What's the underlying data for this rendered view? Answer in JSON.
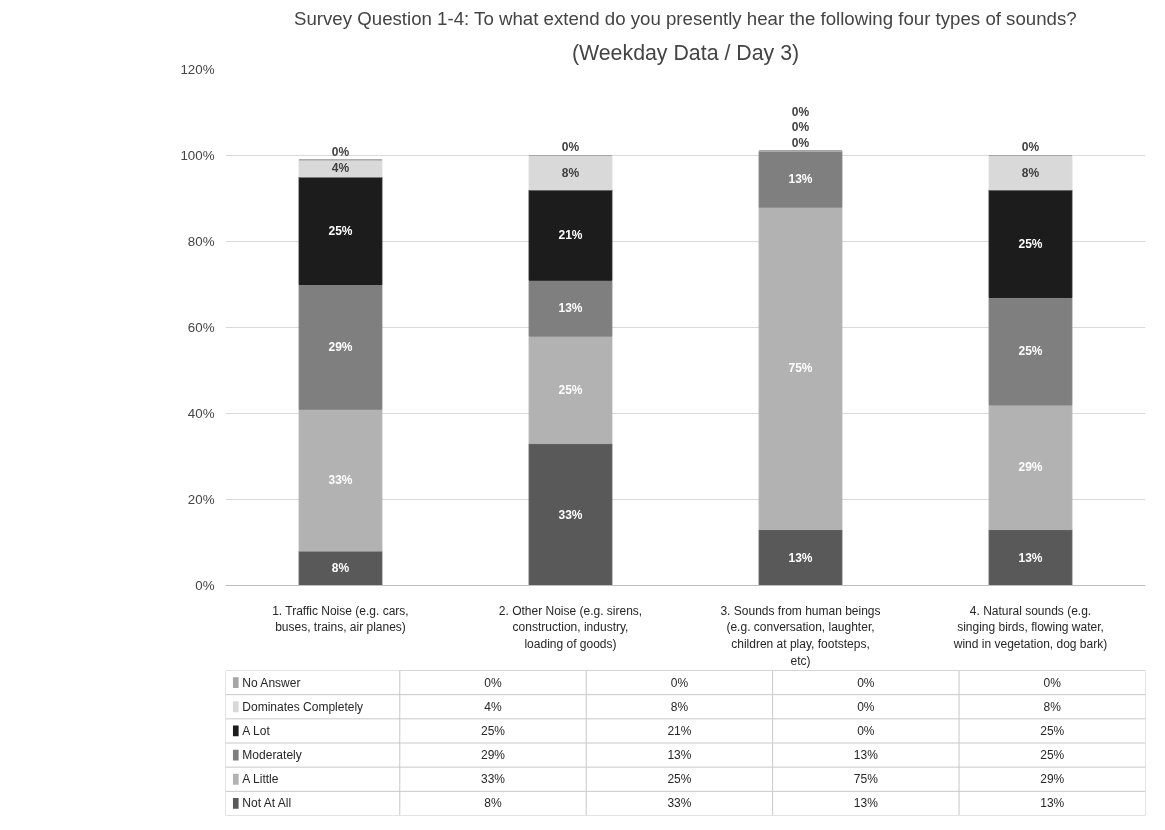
{
  "chart_data": {
    "type": "bar",
    "stacked": true,
    "title": "Survey Question 1-4: To what extend do you presently hear the following four types of sounds?",
    "subtitle": "(Weekday Data / Day 3)",
    "categories": [
      "1. Traffic Noise (e.g. cars, buses, trains, air planes)",
      "2. Other Noise (e.g. sirens, construction, industry, loading of goods)",
      "3. Sounds from human beings (e.g. conversation, laughter, children at play, footsteps, etc)",
      "4. Natural sounds (e.g. singing birds, flowing water, wind in vegetation, dog bark)"
    ],
    "series": [
      {
        "name": "Not At All",
        "color": "#595959",
        "values": [
          8,
          33,
          13,
          13
        ],
        "value_labels": [
          "8%",
          "33%",
          "13%",
          "13%"
        ]
      },
      {
        "name": "A Little",
        "color": "#b2b2b2",
        "values": [
          33,
          25,
          75,
          29
        ],
        "value_labels": [
          "33%",
          "25%",
          "75%",
          "29%"
        ]
      },
      {
        "name": "Moderately",
        "color": "#7f7f7f",
        "values": [
          29,
          13,
          13,
          25
        ],
        "value_labels": [
          "29%",
          "13%",
          "13%",
          "25%"
        ]
      },
      {
        "name": "A Lot",
        "color": "#1c1c1c",
        "values": [
          25,
          21,
          0,
          25
        ],
        "value_labels": [
          "25%",
          "21%",
          "0%",
          "25%"
        ]
      },
      {
        "name": "Dominates Completely",
        "color": "#d9d9d9",
        "values": [
          4,
          8,
          0,
          8
        ],
        "value_labels": [
          "4%",
          "8%",
          "0%",
          "8%"
        ]
      },
      {
        "name": "No Answer",
        "color": "#a6a6a6",
        "values": [
          0,
          0,
          0,
          0
        ],
        "value_labels": [
          "0%",
          "0%",
          "0%",
          "0%"
        ]
      }
    ],
    "ylim": [
      0,
      120
    ],
    "yticks": [
      {
        "value": 0,
        "label": "0%"
      },
      {
        "value": 20,
        "label": "20%"
      },
      {
        "value": 40,
        "label": "40%"
      },
      {
        "value": 60,
        "label": "60%"
      },
      {
        "value": 80,
        "label": "80%"
      },
      {
        "value": 100,
        "label": "100%"
      },
      {
        "value": 120,
        "label": "120%"
      }
    ],
    "grid": "y",
    "legend": "bottom"
  }
}
